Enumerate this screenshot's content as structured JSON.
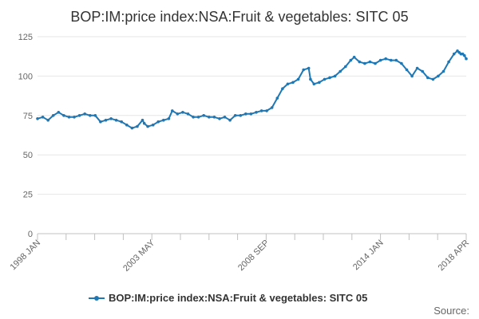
{
  "chart_data": {
    "type": "line",
    "title": "BOP:IM:price index:NSA:Fruit & vegetables: SITC 05",
    "xlabel": "",
    "ylabel": "",
    "ylim": [
      0,
      125
    ],
    "yticks": [
      0,
      25,
      50,
      75,
      100,
      125
    ],
    "x_tick_labels": [
      "1998 JAN",
      "2003 MAY",
      "2008 SEP",
      "2014 JAN",
      "2018 APR"
    ],
    "x_start": "1998 JAN",
    "x_end": "2018 APR",
    "grid": true,
    "legend": "bottom",
    "color": "#1f77b4",
    "series": [
      {
        "name": "BOP:IM:price index:NSA:Fruit & vegetables: SITC 05",
        "points": [
          [
            "1998-01",
            73
          ],
          [
            "1998-04",
            74
          ],
          [
            "1998-07",
            72
          ],
          [
            "1998-10",
            75
          ],
          [
            "1999-01",
            77
          ],
          [
            "1999-04",
            75
          ],
          [
            "1999-07",
            74
          ],
          [
            "1999-10",
            74
          ],
          [
            "2000-01",
            75
          ],
          [
            "2000-04",
            76
          ],
          [
            "2000-07",
            75
          ],
          [
            "2000-10",
            75
          ],
          [
            "2001-01",
            71
          ],
          [
            "2001-04",
            72
          ],
          [
            "2001-07",
            73
          ],
          [
            "2001-10",
            72
          ],
          [
            "2002-01",
            71
          ],
          [
            "2002-04",
            69
          ],
          [
            "2002-07",
            67
          ],
          [
            "2002-10",
            68
          ],
          [
            "2003-01",
            72
          ],
          [
            "2003-02",
            70
          ],
          [
            "2003-04",
            68
          ],
          [
            "2003-07",
            69
          ],
          [
            "2003-10",
            71
          ],
          [
            "2004-01",
            72
          ],
          [
            "2004-04",
            73
          ],
          [
            "2004-06",
            78
          ],
          [
            "2004-09",
            76
          ],
          [
            "2004-12",
            77
          ],
          [
            "2005-03",
            76
          ],
          [
            "2005-06",
            74
          ],
          [
            "2005-09",
            74
          ],
          [
            "2005-12",
            75
          ],
          [
            "2006-03",
            74
          ],
          [
            "2006-06",
            74
          ],
          [
            "2006-09",
            73
          ],
          [
            "2006-12",
            74
          ],
          [
            "2007-03",
            72
          ],
          [
            "2007-06",
            75
          ],
          [
            "2007-09",
            75
          ],
          [
            "2007-12",
            76
          ],
          [
            "2008-03",
            76
          ],
          [
            "2008-06",
            77
          ],
          [
            "2008-09",
            78
          ],
          [
            "2008-12",
            78
          ],
          [
            "2009-03",
            80
          ],
          [
            "2009-06",
            86
          ],
          [
            "2009-09",
            92
          ],
          [
            "2009-12",
            95
          ],
          [
            "2010-03",
            96
          ],
          [
            "2010-06",
            98
          ],
          [
            "2010-09",
            104
          ],
          [
            "2010-12",
            105
          ],
          [
            "2011-01",
            98
          ],
          [
            "2011-03",
            95
          ],
          [
            "2011-06",
            96
          ],
          [
            "2011-09",
            98
          ],
          [
            "2011-12",
            99
          ],
          [
            "2012-03",
            100
          ],
          [
            "2012-06",
            103
          ],
          [
            "2012-09",
            106
          ],
          [
            "2012-12",
            110
          ],
          [
            "2013-02",
            112
          ],
          [
            "2013-05",
            109
          ],
          [
            "2013-08",
            108
          ],
          [
            "2013-11",
            109
          ],
          [
            "2014-02",
            108
          ],
          [
            "2014-05",
            110
          ],
          [
            "2014-08",
            111
          ],
          [
            "2014-11",
            110
          ],
          [
            "2015-02",
            110
          ],
          [
            "2015-05",
            108
          ],
          [
            "2015-08",
            104
          ],
          [
            "2015-11",
            100
          ],
          [
            "2016-02",
            105
          ],
          [
            "2016-05",
            103
          ],
          [
            "2016-08",
            99
          ],
          [
            "2016-11",
            98
          ],
          [
            "2017-02",
            100
          ],
          [
            "2017-05",
            103
          ],
          [
            "2017-08",
            109
          ],
          [
            "2017-11",
            114
          ],
          [
            "2018-01",
            116
          ],
          [
            "2018-02",
            115
          ],
          [
            "2018-03",
            114
          ],
          [
            "2018-04",
            114
          ],
          [
            "2018-05",
            113
          ],
          [
            "2018-06",
            111
          ]
        ]
      }
    ],
    "source_label": "Source:"
  }
}
